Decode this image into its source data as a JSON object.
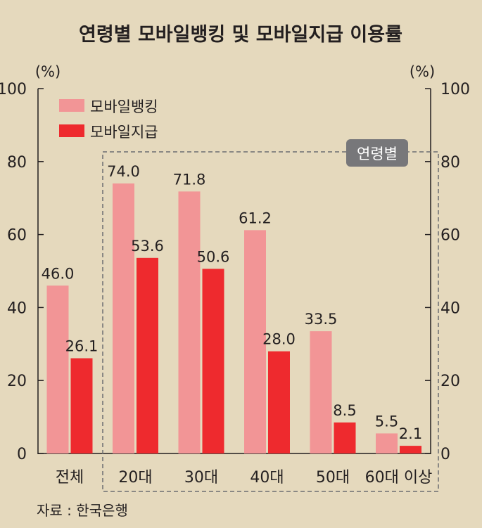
{
  "chart_data": {
    "type": "bar",
    "title": "연령별 모바일뱅킹 및 모바일지급 이용률",
    "unit_left": "(%)",
    "unit_right": "(%)",
    "categories": [
      "전체",
      "20대",
      "30대",
      "40대",
      "50대",
      "60대 이상"
    ],
    "series": [
      {
        "name": "모바일뱅킹",
        "color": "#f29596",
        "values": [
          46.0,
          74.0,
          71.8,
          61.2,
          33.5,
          5.5
        ]
      },
      {
        "name": "모바일지급",
        "color": "#ee2a2e",
        "values": [
          26.1,
          53.6,
          50.6,
          28.0,
          8.5,
          2.1
        ]
      }
    ],
    "value_labels": [
      [
        "46.0",
        "74.0",
        "71.8",
        "61.2",
        "33.5",
        "5.5"
      ],
      [
        "26.1",
        "53.6",
        "50.6",
        "28.0",
        "8.5",
        "2.1"
      ]
    ],
    "ylim": [
      0,
      100
    ],
    "yticks": [
      0,
      20,
      40,
      60,
      80,
      100
    ],
    "grid": false,
    "legend": "top-left",
    "group_box_label": "연령별",
    "source": "자료 : 한국은행"
  }
}
